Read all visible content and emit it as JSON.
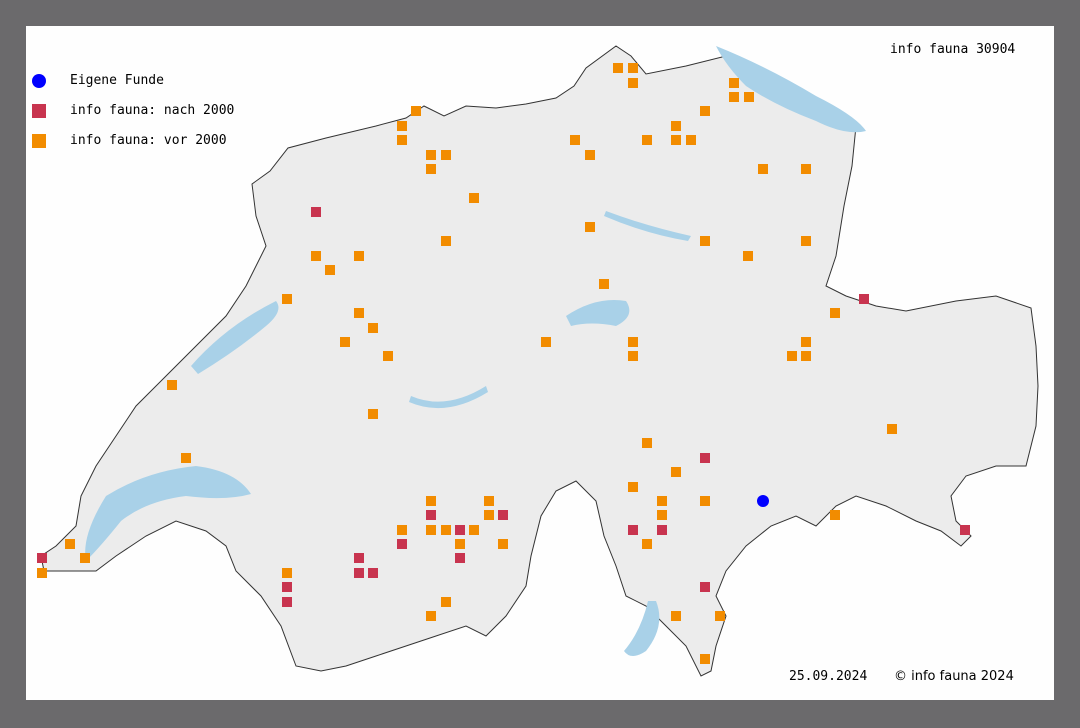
{
  "title": "info fauna 30904",
  "legend": [
    {
      "label": "Eigene Funde",
      "shape": "circle",
      "color": "#0000ff"
    },
    {
      "label": "info fauna: nach 2000",
      "shape": "square",
      "color": "#c8344f"
    },
    {
      "label": "info fauna: vor 2000",
      "shape": "square",
      "color": "#f28c00"
    }
  ],
  "date": "25.09.2024",
  "copyright": "© info fauna 2024",
  "colors": {
    "frame": "#6b6a6c",
    "land": "#ececec",
    "lakes": "#a9d1e8",
    "border": "#333333"
  }
}
